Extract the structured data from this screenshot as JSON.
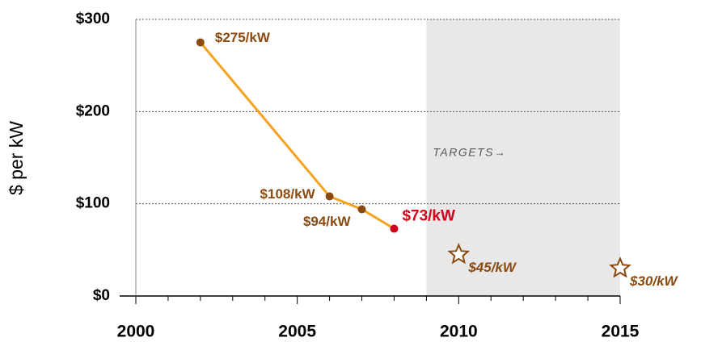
{
  "chart_data": {
    "type": "line",
    "ylabel": "$ per kW",
    "annotation": "TARGETS→",
    "target_region": [
      2009,
      2015
    ],
    "xlim": [
      2000,
      2015
    ],
    "xticks": [
      2000,
      2005,
      2010,
      2015
    ],
    "xminorticks": [
      2001,
      2002,
      2003,
      2004,
      2006,
      2007,
      2008,
      2009,
      2011,
      2012,
      2013,
      2014
    ],
    "ylim": [
      0,
      300
    ],
    "yticks": [
      {
        "value": 0,
        "label": "$0"
      },
      {
        "value": 100,
        "label": "$100"
      },
      {
        "value": 200,
        "label": "$200"
      },
      {
        "value": 300,
        "label": "$300"
      }
    ],
    "grid": true,
    "series": [
      {
        "name": "Cost",
        "color": "#f5a21e",
        "marker_colors": [
          "#8b4a10",
          "#8b4a10",
          "#8b4a10",
          "#d0021b"
        ],
        "x": [
          2002,
          2006,
          2007,
          2008
        ],
        "values": [
          275,
          108,
          94,
          73
        ],
        "value_labels": [
          "$275/kW",
          "$108/kW",
          "$94/kW",
          "$73/kW"
        ]
      },
      {
        "name": "Targets",
        "color": "#8b4a10",
        "x": [
          2010,
          2015
        ],
        "values": [
          45,
          30
        ],
        "value_labels": [
          "$45/kW",
          "$30/kW"
        ]
      }
    ]
  }
}
